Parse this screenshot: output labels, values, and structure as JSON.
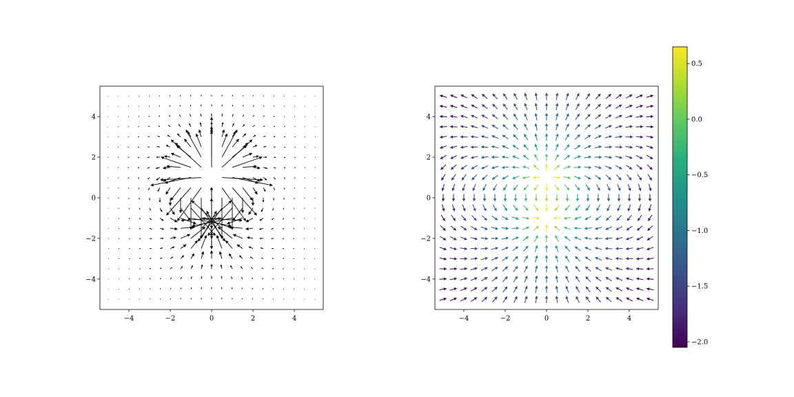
{
  "chart_data": [
    {
      "type": "quiver",
      "title": "",
      "xlabel": "",
      "ylabel": "",
      "xlim": [
        -5.4,
        5.4
      ],
      "ylim": [
        -5.5,
        5.5
      ],
      "grid": false,
      "x_ticks": [
        -4,
        -2,
        0,
        2,
        4
      ],
      "y_ticks": [
        -4,
        -2,
        0,
        2,
        4
      ],
      "x_tick_labels": [
        "−4",
        "−2",
        "0",
        "2",
        "4"
      ],
      "y_tick_labels": [
        "−4",
        "−2",
        "0",
        "2",
        "4"
      ],
      "grid_range": [
        -5,
        5
      ],
      "grid_points": 21,
      "field": {
        "source": {
          "x": 0,
          "y": 1,
          "strength": 1
        },
        "sink": {
          "x": 0,
          "y": -1,
          "strength": -1
        }
      },
      "arrow_color": "#000000"
    },
    {
      "type": "quiver",
      "title": "",
      "xlabel": "",
      "ylabel": "",
      "xlim": [
        -5.4,
        5.4
      ],
      "ylim": [
        -5.5,
        5.5
      ],
      "grid": false,
      "x_ticks": [
        -4,
        -2,
        0,
        2,
        4
      ],
      "y_ticks": [
        -4,
        -2,
        0,
        2,
        4
      ],
      "x_tick_labels": [
        "−4",
        "−2",
        "0",
        "2",
        "4"
      ],
      "y_tick_labels": [
        "−4",
        "−2",
        "0",
        "2",
        "4"
      ],
      "grid_range": [
        -5,
        5
      ],
      "grid_points": 21,
      "arrows": "normalized",
      "color_by": "log10 magnitude",
      "colormap": "viridis",
      "colorbar": {
        "range": [
          -2.05,
          0.65
        ],
        "ticks": [
          0.5,
          0.0,
          -0.5,
          -1.0,
          -1.5,
          -2.0
        ],
        "tick_labels": [
          "0.5",
          "0.0",
          "−0.5",
          "−1.0",
          "−1.5",
          "−2.0"
        ],
        "placement": "right"
      }
    }
  ]
}
